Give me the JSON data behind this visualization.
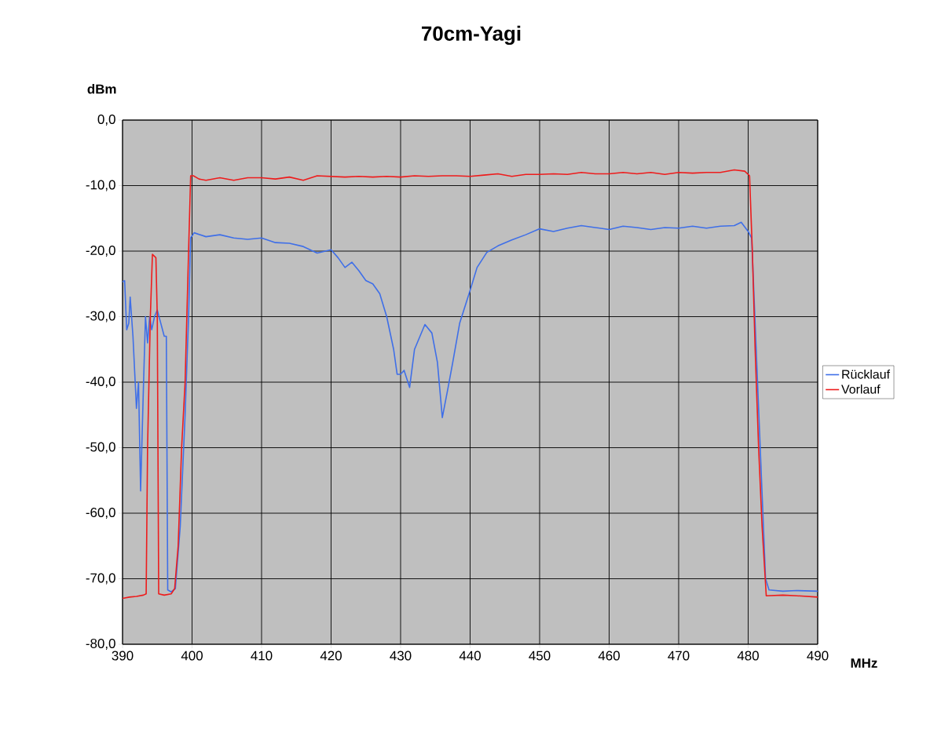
{
  "chart_data": {
    "type": "line",
    "title": "70cm-Yagi",
    "xlabel": "MHz",
    "ylabel": "dBm",
    "xlim": [
      390,
      490
    ],
    "xticks": [
      390,
      400,
      410,
      420,
      430,
      440,
      450,
      460,
      470,
      480,
      490
    ],
    "ylim": [
      -80,
      0
    ],
    "yticks": [
      {
        "value": 0,
        "label": "0,0"
      },
      {
        "value": -10,
        "label": "-10,0"
      },
      {
        "value": -20,
        "label": "-20,0"
      },
      {
        "value": -30,
        "label": "-30,0"
      },
      {
        "value": -40,
        "label": "-40,0"
      },
      {
        "value": -50,
        "label": "-50,0"
      },
      {
        "value": -60,
        "label": "-60,0"
      },
      {
        "value": -70,
        "label": "-70,0"
      },
      {
        "value": -80,
        "label": "-80,0"
      }
    ],
    "grid": true,
    "legend": "right",
    "marker": "none",
    "line_style": "solid",
    "series": [
      {
        "name": "Rücklauf",
        "color": "#3f6fe8",
        "x": [
          390,
          390.3,
          390.6,
          390.9,
          391.1,
          391.5,
          392,
          392.3,
          392.6,
          393,
          393.3,
          393.6,
          393.9,
          394.2,
          394.6,
          395,
          395.5,
          396,
          396.3,
          396.5,
          397,
          397.6,
          398.3,
          399,
          399.5,
          399.8,
          400.3,
          402,
          404,
          406,
          408,
          410,
          412,
          414,
          416,
          418,
          420,
          421,
          422,
          423,
          424,
          425,
          426,
          427,
          428,
          429,
          429.5,
          430,
          430.5,
          431.3,
          432,
          433.5,
          434.5,
          435.3,
          436,
          436.8,
          437.5,
          438.5,
          440,
          441,
          442.4,
          444,
          446,
          448,
          450,
          452,
          454,
          456,
          458,
          460,
          462,
          464,
          466,
          468,
          470,
          472,
          474,
          476,
          478,
          479,
          480,
          480.5,
          481,
          481.5,
          482,
          482.5,
          483,
          485,
          487,
          490
        ],
        "values": [
          -24.7,
          -24.5,
          -32,
          -31,
          -27,
          -33,
          -44,
          -40,
          -56.6,
          -41,
          -30,
          -34,
          -30,
          -32,
          -30,
          -29,
          -31,
          -33,
          -33,
          -71.7,
          -72,
          -71.5,
          -62,
          -45,
          -30,
          -18,
          -17.2,
          -17.8,
          -17.5,
          -18,
          -18.2,
          -18,
          -18.7,
          -18.8,
          -19.3,
          -20.3,
          -19.8,
          -21,
          -22.5,
          -21.7,
          -23,
          -24.5,
          -25,
          -26.5,
          -30,
          -35,
          -38.8,
          -38.8,
          -38.2,
          -40.8,
          -35,
          -31.2,
          -32.5,
          -37,
          -45.4,
          -41,
          -37,
          -31,
          -26,
          -22.5,
          -20.2,
          -19.2,
          -18.3,
          -17.5,
          -16.6,
          -17,
          -16.5,
          -16.1,
          -16.4,
          -16.7,
          -16.2,
          -16.4,
          -16.7,
          -16.4,
          -16.5,
          -16.2,
          -16.5,
          -16.2,
          -16.1,
          -15.6,
          -17,
          -18,
          null,
          null,
          null,
          -70,
          -71.7,
          -71.9,
          -71.8,
          -71.9
        ]
      },
      {
        "name": "Vorlauf",
        "color": "#ee1c1c",
        "x": [
          390,
          391,
          392,
          393,
          393.4,
          393.6,
          394,
          394.3,
          394.8,
          395,
          395.2,
          396,
          397,
          397.5,
          398,
          398.5,
          399,
          399.5,
          399.8,
          400.2,
          401,
          402,
          404,
          406,
          408,
          410,
          412,
          414,
          416,
          418,
          420,
          422,
          424,
          426,
          428,
          430,
          432,
          434,
          436,
          438,
          440,
          442,
          444,
          446,
          448,
          450,
          452,
          454,
          456,
          458,
          460,
          462,
          464,
          466,
          468,
          470,
          472,
          474,
          476,
          478,
          479.5,
          480.2,
          480.6,
          481,
          481.5,
          482,
          482.6,
          485,
          487,
          490
        ],
        "values": [
          -73,
          -72.8,
          -72.7,
          -72.5,
          -72.3,
          -50,
          -30,
          -20.5,
          -21,
          -30,
          -72.3,
          -72.5,
          -72.3,
          -71.5,
          -65,
          -50,
          -40,
          -20,
          -8.5,
          -8.5,
          -9,
          -9.2,
          -8.8,
          -9.2,
          -8.8,
          -8.8,
          -9,
          -8.7,
          -9.2,
          -8.5,
          -8.6,
          -8.7,
          -8.6,
          -8.7,
          -8.6,
          -8.7,
          -8.5,
          -8.6,
          -8.5,
          -8.5,
          -8.6,
          -8.4,
          -8.2,
          -8.6,
          -8.3,
          -8.3,
          -8.2,
          -8.3,
          -8,
          -8.2,
          -8.2,
          -8,
          -8.2,
          -8,
          -8.3,
          -8,
          -8.1,
          -8,
          -8,
          -7.6,
          -7.8,
          -8.5,
          -20,
          -35,
          -50,
          -62,
          -72.6,
          -72.5,
          -72.6,
          -72.8
        ]
      }
    ]
  }
}
